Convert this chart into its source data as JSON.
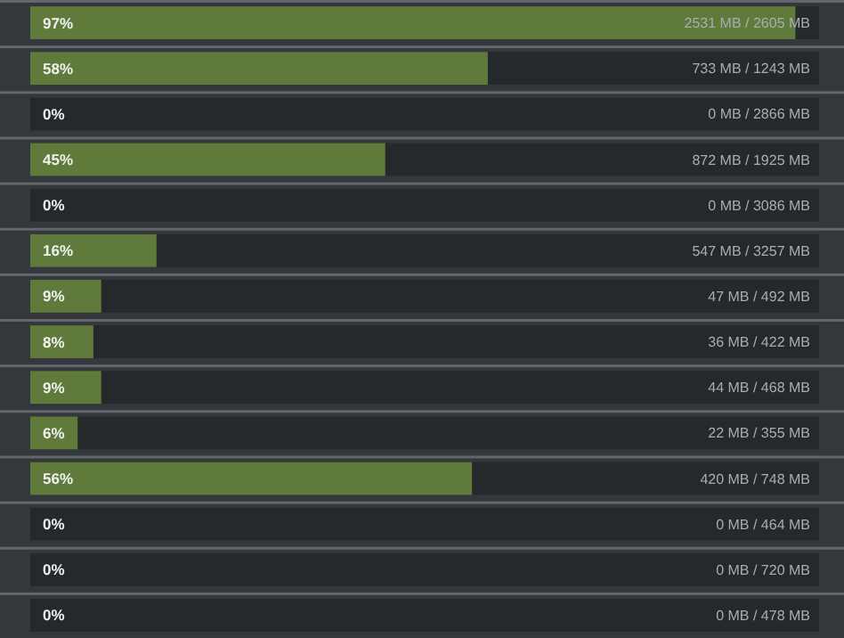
{
  "chart_data": {
    "type": "bar",
    "orientation": "horizontal",
    "xlim": [
      0,
      100
    ],
    "tick_labels": "y",
    "categories": [
      "2531 MB / 2605 MB",
      "733 MB / 1243 MB",
      "0 MB / 2866 MB",
      "872 MB / 1925 MB",
      "0 MB / 3086 MB",
      "547 MB / 3257 MB",
      "47 MB / 492 MB",
      "36 MB / 422 MB",
      "44 MB / 468 MB",
      "22 MB / 355 MB",
      "420 MB / 748 MB",
      "0 MB / 464 MB",
      "0 MB / 720 MB",
      "0 MB / 478 MB"
    ],
    "values": [
      97,
      58,
      0,
      45,
      0,
      16,
      9,
      8,
      9,
      6,
      56,
      0,
      0,
      0
    ],
    "value_labels": [
      "97%",
      "58%",
      "0%",
      "45%",
      "0%",
      "16%",
      "9%",
      "8%",
      "9%",
      "6%",
      "56%",
      "0%",
      "0%",
      "0%"
    ],
    "color": "#5f7a3a"
  }
}
